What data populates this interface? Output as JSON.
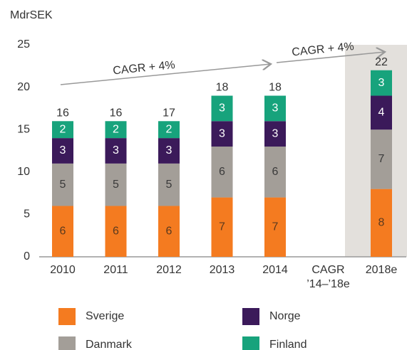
{
  "chart_data": {
    "type": "stacked_bar",
    "ylabel": "MdrSEK",
    "categories": [
      "2010",
      "2011",
      "2012",
      "2013",
      "2014",
      "CAGR\n’14–’18e",
      "2018e"
    ],
    "series": [
      {
        "name": "Sverige",
        "color": "#f47b20",
        "label_color": "#5b3a1e",
        "values": [
          6,
          6,
          6,
          7,
          7,
          null,
          8
        ]
      },
      {
        "name": "Danmark",
        "color": "#a39e98",
        "label_color": "#3a3a3a",
        "values": [
          5,
          5,
          5,
          6,
          6,
          null,
          7
        ]
      },
      {
        "name": "Norge",
        "color": "#3b1a5a",
        "label_color": "#ffffff",
        "values": [
          3,
          3,
          3,
          3,
          3,
          null,
          4
        ]
      },
      {
        "name": "Finland",
        "color": "#17a37c",
        "label_color": "#ffffff",
        "values": [
          2,
          2,
          2,
          3,
          3,
          null,
          3
        ]
      }
    ],
    "totals": [
      16,
      16,
      17,
      18,
      18,
      null,
      22
    ],
    "annotations": [
      "CAGR + 4%",
      "CAGR + 4%"
    ],
    "ylim": [
      0,
      25
    ],
    "yticks": [
      0,
      5,
      10,
      15,
      20,
      25
    ],
    "grid": false
  }
}
